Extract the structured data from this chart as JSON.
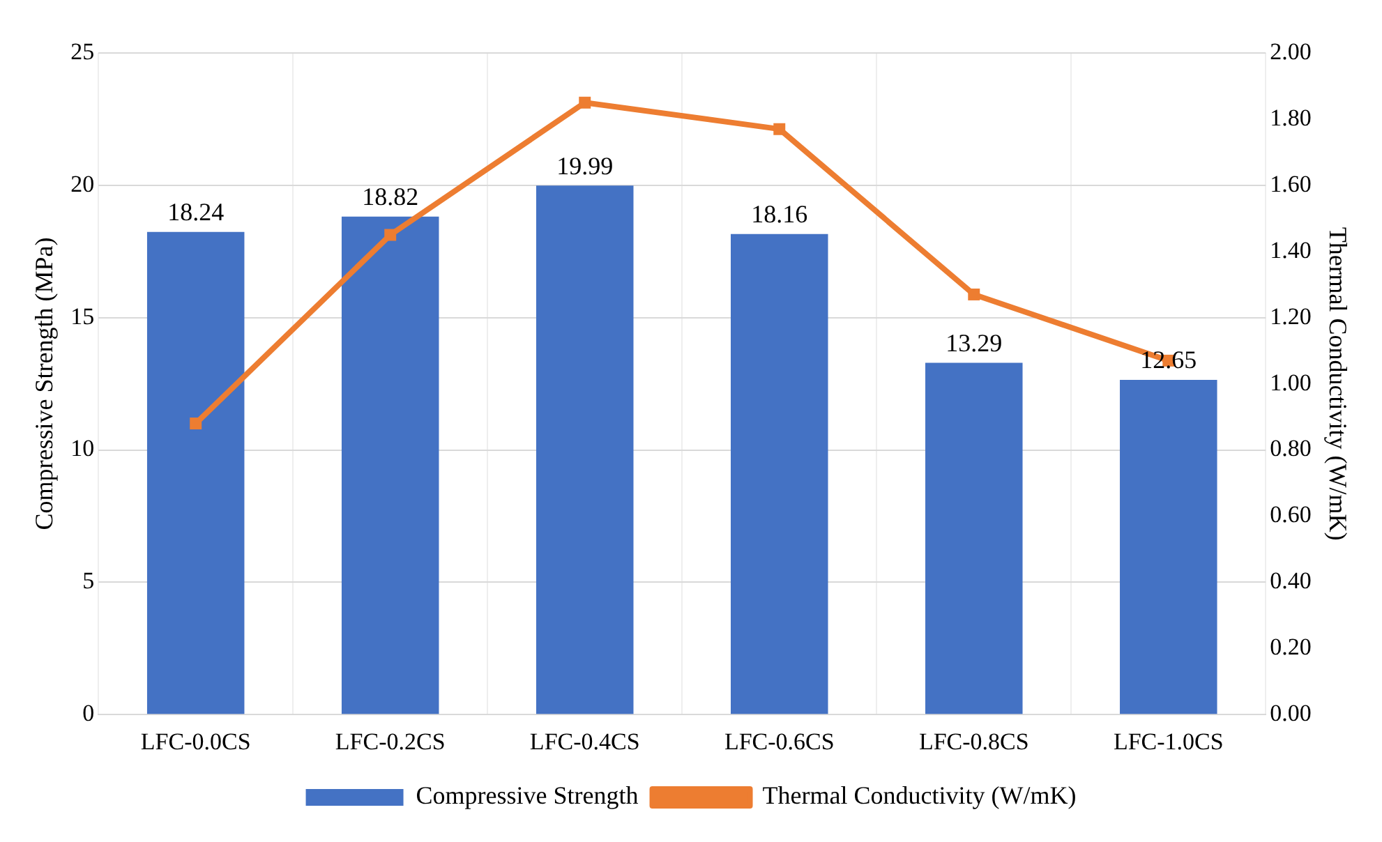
{
  "chart_data": {
    "type": "bar",
    "categories": [
      "LFC-0.0CS",
      "LFC-0.2CS",
      "LFC-0.4CS",
      "LFC-0.6CS",
      "LFC-0.8CS",
      "LFC-1.0CS"
    ],
    "ylabel": "Compressive Strength (MPa)",
    "y2label": "Thermal Conductivity (W/mK)",
    "series": [
      {
        "name": "Compressive Strength",
        "color": "#4472c4",
        "values": [
          18.24,
          18.82,
          19.99,
          18.16,
          13.29,
          12.65
        ],
        "value_labels": [
          "18.24",
          "18.82",
          "19.99",
          "18.16",
          "13.29",
          "12.65"
        ]
      },
      {
        "name": "Thermal Conductivity (W/mK)",
        "type": "line",
        "axis": "y2",
        "color": "#ed7d31",
        "marker": "square",
        "values": [
          0.88,
          1.45,
          1.85,
          1.77,
          1.27,
          1.07
        ]
      }
    ],
    "ylim": [
      0,
      25
    ],
    "yticks": [
      0,
      5,
      10,
      15,
      20,
      25
    ],
    "y2lim": [
      0,
      2
    ],
    "y2ticks": [
      {
        "value": 0,
        "label": "0.00"
      },
      {
        "value": 0.2,
        "label": "0.20"
      },
      {
        "value": 0.4,
        "label": "0.40"
      },
      {
        "value": 0.6,
        "label": "0.60"
      },
      {
        "value": 0.8,
        "label": "0.80"
      },
      {
        "value": 1,
        "label": "1.00"
      },
      {
        "value": 1.2,
        "label": "1.20"
      },
      {
        "value": 1.4,
        "label": "1.40"
      },
      {
        "value": 1.6,
        "label": "1.60"
      },
      {
        "value": 1.8,
        "label": "1.80"
      },
      {
        "value": 2,
        "label": "2.00"
      }
    ],
    "grid": true,
    "legend": "bottom"
  }
}
